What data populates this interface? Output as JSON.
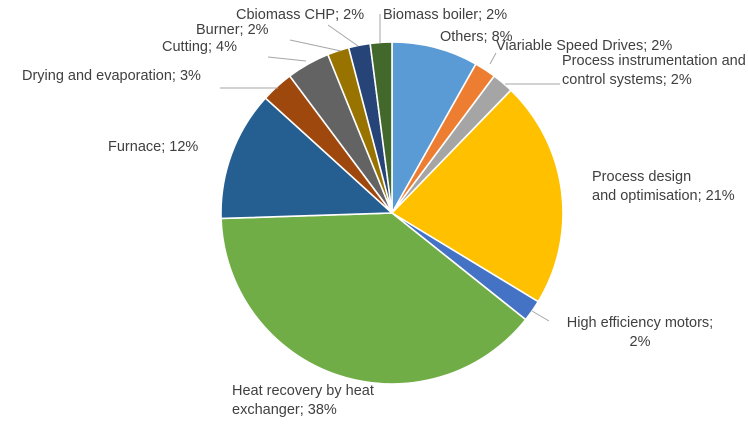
{
  "chart_data": {
    "type": "pie",
    "title": "",
    "legend": "none",
    "slices": [
      {
        "label": "Others; 8%",
        "name": "Others",
        "value": 8,
        "color": "#5b9bd5"
      },
      {
        "label": "Viariable Speed Drives; 2%",
        "name": "Viariable Speed Drives",
        "value": 2,
        "color": "#ed7d31"
      },
      {
        "label": "Process instrumentation and control systems; 2%",
        "name": "Process instrumentation and control systems",
        "value": 2,
        "color": "#a5a5a5"
      },
      {
        "label": "Process design and optimisation; 21%",
        "name": "Process design and optimisation",
        "value": 21,
        "color": "#ffc000"
      },
      {
        "label": "High efficiency motors; 2%",
        "name": "High efficiency motors",
        "value": 2,
        "color": "#4472c4"
      },
      {
        "label": "Heat recovery by heat exchanger; 38%",
        "name": "Heat recovery by heat exchanger",
        "value": 38,
        "color": "#70ad47"
      },
      {
        "label": "Furnace; 12%",
        "name": "Furnace",
        "value": 12,
        "color": "#255e91"
      },
      {
        "label": "Drying and evaporation; 3%",
        "name": "Drying and evaporation",
        "value": 3,
        "color": "#9e480e"
      },
      {
        "label": "Cutting; 4%",
        "name": "Cutting",
        "value": 4,
        "color": "#636363"
      },
      {
        "label": "Burner; 2%",
        "name": "Burner",
        "value": 2,
        "color": "#997300"
      },
      {
        "label": "Cbiomass CHP; 2%",
        "name": "Cbiomass CHP",
        "value": 2,
        "color": "#264478"
      },
      {
        "label": "Biomass boiler; 2%",
        "name": "Biomass boiler",
        "value": 2,
        "color": "#43682b"
      }
    ]
  }
}
